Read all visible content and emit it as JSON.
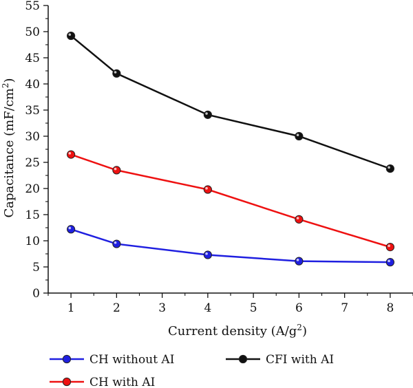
{
  "chart_data": {
    "type": "line",
    "xlabel": "Current density (A/g",
    "xlabel_sup": "2",
    "xlabel_suffix": ")",
    "ylabel": "Capacitance (mF/cm",
    "ylabel_sup": "2",
    "ylabel_suffix": ")",
    "xlim": [
      0.5,
      8.5
    ],
    "ylim": [
      0,
      55
    ],
    "xticks": [
      1,
      2,
      3,
      4,
      5,
      6,
      7,
      8
    ],
    "yticks": [
      0,
      5,
      10,
      15,
      20,
      25,
      30,
      35,
      40,
      45,
      50,
      55
    ],
    "grid": false,
    "legend_position": "bottom",
    "series": [
      {
        "name": "CH without AI",
        "color": "#1f1fe0",
        "x": [
          1,
          2,
          4,
          6,
          8
        ],
        "y": [
          12.2,
          9.4,
          7.3,
          6.1,
          5.9
        ]
      },
      {
        "name": "CH with AI",
        "color": "#ee1111",
        "x": [
          1,
          2,
          4,
          6,
          8
        ],
        "y": [
          26.5,
          23.5,
          19.8,
          14.1,
          8.8
        ]
      },
      {
        "name": "CFI with AI",
        "color": "#111111",
        "x": [
          1,
          2,
          4,
          6,
          8
        ],
        "y": [
          49.2,
          42.0,
          34.1,
          30.0,
          23.8
        ]
      }
    ]
  }
}
